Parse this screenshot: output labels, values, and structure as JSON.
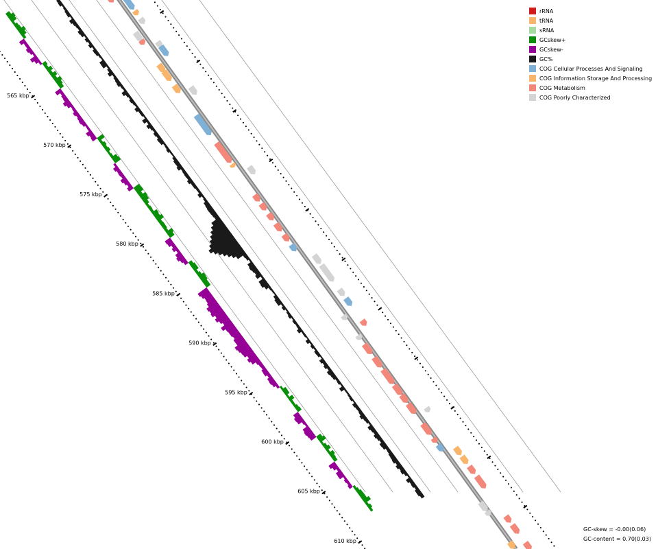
{
  "legend": [
    {
      "label": "rRNA",
      "color": "#d11a1a"
    },
    {
      "label": "tRNA",
      "color": "#f9b56b"
    },
    {
      "label": "sRNA",
      "color": "#a6dba0"
    },
    {
      "label": "GCskew+",
      "color": "#0a8f0a"
    },
    {
      "label": "GCskew-",
      "color": "#960096"
    },
    {
      "label": "GC%",
      "color": "#1a1a1a"
    },
    {
      "label": "COG Cellular Processes And Signaling",
      "color": "#7fb0d6"
    },
    {
      "label": "COG Information Storage And Processing",
      "color": "#f9b56b"
    },
    {
      "label": "COG Metabolism",
      "color": "#f2877a"
    },
    {
      "label": "COG Poorly Characterized",
      "color": "#d4d4d4"
    }
  ],
  "ticks": [
    "565 kbp",
    "570 kbp",
    "575 kbp",
    "580 kbp",
    "585 kbp",
    "590 kbp",
    "595 kbp",
    "600 kbp",
    "605 kbp",
    "610 kbp"
  ],
  "stats": {
    "gc_skew": "GC-skew = -0.00(0.06)",
    "gc_content": "GC-content = 0.70(0.03)"
  }
}
